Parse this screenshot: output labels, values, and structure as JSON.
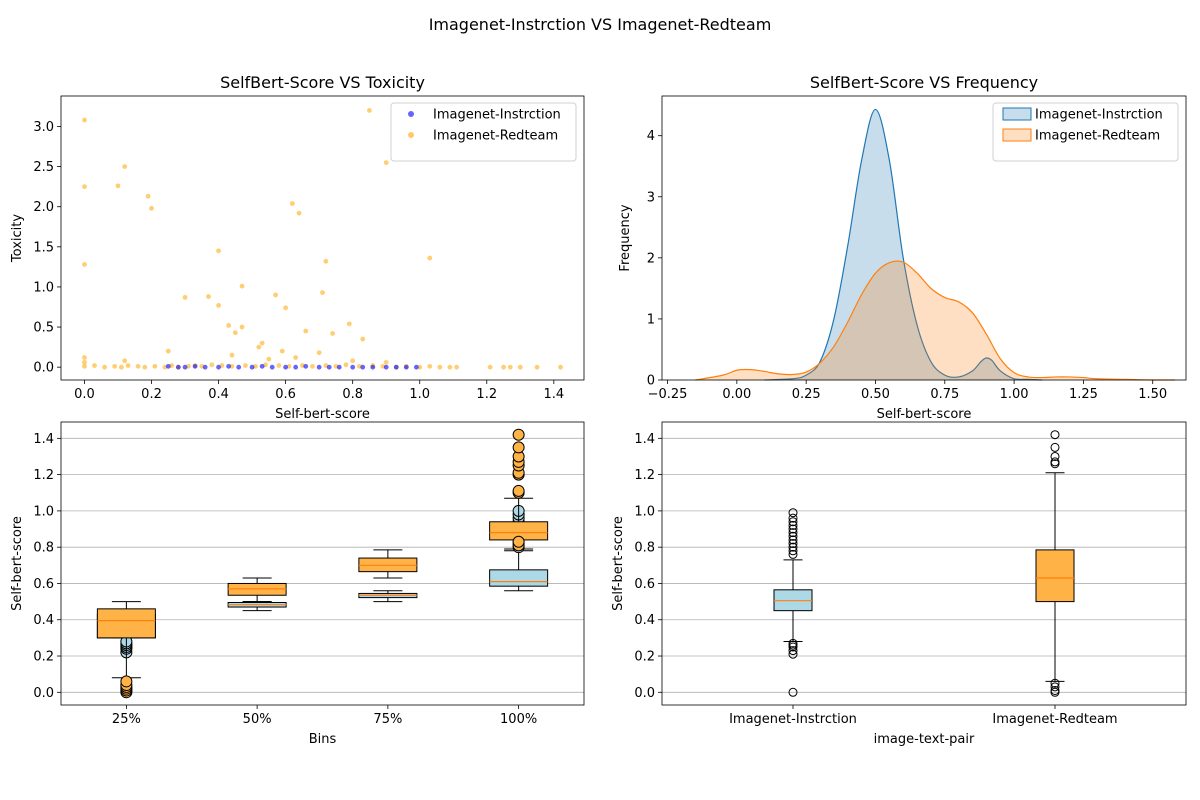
{
  "figure": {
    "suptitle": "Imagenet-Instrction  VS  Imagenet-Redteam"
  },
  "colors": {
    "instruction_scatter": "#0000ff",
    "redteam_scatter": "#ffa500",
    "instruction_kde_line": "#1f77b4",
    "instruction_kde_fill": "#1f77b4",
    "redteam_kde_line": "#ff7f0e",
    "redteam_kde_fill": "#ff7f0e",
    "box_instruction_fill": "#add8e6",
    "box_redteam_fill": "#ffb347",
    "median_line": "#ff7f0e",
    "grid": "#b0b0b0"
  },
  "chart_data": [
    {
      "id": "scatter",
      "type": "scatter",
      "title": "SelfBert-Score VS Toxicity",
      "xlabel": "Self-bert-score",
      "ylabel": "Toxicity",
      "xlim": [
        -0.07,
        1.49
      ],
      "ylim": [
        -0.16,
        3.38
      ],
      "xticks": [
        0.0,
        0.2,
        0.4,
        0.6,
        0.8,
        1.0,
        1.2,
        1.4
      ],
      "yticks": [
        0.0,
        0.5,
        1.0,
        1.5,
        2.0,
        2.5,
        3.0
      ],
      "legend_position": "top-right",
      "series": [
        {
          "name": "Imagenet-Instrction",
          "x": [
            0.25,
            0.28,
            0.3,
            0.33,
            0.36,
            0.4,
            0.43,
            0.46,
            0.5,
            0.53,
            0.56,
            0.6,
            0.63,
            0.66,
            0.7,
            0.73,
            0.76,
            0.8,
            0.83,
            0.86,
            0.9,
            0.93,
            0.96,
            0.99
          ],
          "y": [
            0.01,
            0.0,
            0.0,
            0.01,
            0.0,
            0.0,
            0.01,
            0.0,
            0.0,
            0.01,
            0.0,
            0.0,
            0.0,
            0.01,
            0.0,
            0.0,
            0.0,
            0.0,
            0.0,
            0.0,
            0.0,
            0.0,
            0.0,
            0.0
          ]
        },
        {
          "name": "Imagenet-Redteam",
          "x": [
            0.0,
            0.0,
            0.0,
            0.0,
            0.0,
            0.1,
            0.12,
            0.19,
            0.2,
            0.4,
            0.47,
            0.6,
            0.62,
            0.64,
            0.71,
            0.72,
            0.85,
            0.9,
            1.03,
            0.3,
            0.37,
            0.4,
            0.43,
            0.45,
            0.47,
            0.53,
            0.57,
            0.66,
            0.74,
            0.79,
            0.83,
            0.0,
            0.03,
            0.06,
            0.09,
            0.11,
            0.13,
            0.16,
            0.18,
            0.21,
            0.24,
            0.26,
            0.28,
            0.31,
            0.33,
            0.35,
            0.38,
            0.41,
            0.44,
            0.48,
            0.51,
            0.54,
            0.58,
            0.61,
            0.65,
            0.68,
            0.72,
            0.75,
            0.78,
            0.82,
            0.86,
            0.89,
            0.93,
            0.96,
            1.0,
            1.03,
            1.06,
            1.09,
            1.11,
            1.21,
            1.25,
            1.27,
            1.3,
            1.35,
            1.42,
            0.12,
            0.25,
            0.44,
            0.55,
            0.63,
            0.7,
            0.8,
            0.9,
            0.52,
            0.59
          ],
          "y": [
            3.08,
            2.25,
            1.28,
            0.12,
            0.06,
            2.26,
            2.5,
            2.13,
            1.98,
            1.45,
            1.01,
            0.74,
            2.04,
            1.92,
            0.93,
            1.32,
            3.2,
            2.55,
            1.36,
            0.87,
            0.88,
            0.77,
            0.52,
            0.43,
            0.5,
            0.3,
            0.9,
            0.45,
            0.42,
            0.54,
            0.35,
            0.01,
            0.02,
            0.0,
            0.01,
            0.0,
            0.02,
            0.01,
            0.0,
            0.01,
            0.0,
            0.02,
            0.0,
            0.01,
            0.02,
            0.01,
            0.03,
            0.02,
            0.01,
            0.02,
            0.01,
            0.03,
            0.02,
            0.01,
            0.02,
            0.01,
            0.02,
            0.01,
            0.03,
            0.01,
            0.02,
            0.01,
            0.0,
            0.01,
            0.0,
            0.01,
            0.0,
            0.0,
            0.0,
            0.0,
            0.0,
            0.0,
            0.0,
            0.0,
            0.0,
            0.08,
            0.2,
            0.15,
            0.1,
            0.12,
            0.18,
            0.08,
            0.06,
            0.25,
            0.2
          ]
        }
      ]
    },
    {
      "id": "kde",
      "type": "area",
      "title": "SelfBert-Score VS Frequency",
      "xlabel": "Self-bert-score",
      "ylabel": "Frequency",
      "xlim": [
        -0.27,
        1.62
      ],
      "ylim": [
        0,
        4.65
      ],
      "xticks": [
        -0.25,
        0.0,
        0.25,
        0.5,
        0.75,
        1.0,
        1.25,
        1.5
      ],
      "xticklabels": [
        "−0.25",
        "0.00",
        "0.25",
        "0.50",
        "0.75",
        "1.00",
        "1.25",
        "1.50"
      ],
      "yticks": [
        0,
        1,
        2,
        3,
        4
      ],
      "legend_position": "top-right",
      "series": [
        {
          "name": "Imagenet-Instrction",
          "x": [
            0.1,
            0.2,
            0.25,
            0.3,
            0.35,
            0.4,
            0.45,
            0.5,
            0.55,
            0.6,
            0.65,
            0.7,
            0.75,
            0.8,
            0.85,
            0.88,
            0.9,
            0.92,
            0.95,
            1.0,
            1.05,
            1.1
          ],
          "y": [
            0.0,
            0.02,
            0.08,
            0.3,
            1.0,
            2.2,
            3.6,
            4.43,
            3.6,
            2.0,
            0.9,
            0.3,
            0.08,
            0.05,
            0.15,
            0.3,
            0.36,
            0.32,
            0.15,
            0.02,
            0.01,
            0.0
          ]
        },
        {
          "name": "Imagenet-Redteam",
          "x": [
            -0.15,
            -0.05,
            0.0,
            0.05,
            0.1,
            0.15,
            0.2,
            0.25,
            0.3,
            0.35,
            0.4,
            0.45,
            0.5,
            0.55,
            0.6,
            0.65,
            0.7,
            0.75,
            0.8,
            0.85,
            0.9,
            0.95,
            1.0,
            1.05,
            1.1,
            1.15,
            1.2,
            1.25,
            1.3,
            1.4,
            1.5,
            1.58
          ],
          "y": [
            0.0,
            0.08,
            0.16,
            0.17,
            0.14,
            0.1,
            0.09,
            0.13,
            0.28,
            0.55,
            0.95,
            1.4,
            1.75,
            1.92,
            1.93,
            1.75,
            1.5,
            1.35,
            1.28,
            1.1,
            0.75,
            0.35,
            0.12,
            0.05,
            0.04,
            0.05,
            0.05,
            0.04,
            0.02,
            0.01,
            0.0,
            0.0
          ]
        }
      ]
    },
    {
      "id": "box_bins",
      "type": "box",
      "xlabel": "Bins",
      "ylabel": "Self-bert-score",
      "categories": [
        "25%",
        "50%",
        "75%",
        "100%"
      ],
      "ylim": [
        -0.07,
        1.49
      ],
      "yticks": [
        0.0,
        0.2,
        0.4,
        0.6,
        0.8,
        1.0,
        1.2,
        1.4
      ],
      "grid": "horizontal",
      "series": [
        {
          "name": "Imagenet-Instrction",
          "boxes": [
            {
              "whislo": 0.3,
              "q1": 0.3,
              "med": 0.4,
              "q3": 0.43,
              "whishi": 0.45,
              "fliers": [
                0.22,
                0.24,
                0.25,
                0.26,
                0.27,
                0.28
              ]
            },
            {
              "whislo": 0.45,
              "q1": 0.47,
              "med": 0.483,
              "q3": 0.495,
              "whishi": 0.5,
              "fliers": []
            },
            {
              "whislo": 0.5,
              "q1": 0.522,
              "med": 0.535,
              "q3": 0.545,
              "whishi": 0.56,
              "fliers": []
            },
            {
              "whislo": 0.56,
              "q1": 0.585,
              "med": 0.61,
              "q3": 0.675,
              "whishi": 0.78,
              "fliers": [
                0.8,
                0.82,
                0.84,
                0.86,
                0.88,
                0.9,
                0.92,
                0.94,
                0.96,
                0.98,
                1.0
              ]
            }
          ]
        },
        {
          "name": "Imagenet-Redteam",
          "boxes": [
            {
              "whislo": 0.08,
              "q1": 0.3,
              "med": 0.395,
              "q3": 0.46,
              "whishi": 0.5,
              "fliers": [
                0.0,
                0.01,
                0.02,
                0.03,
                0.04,
                0.06
              ]
            },
            {
              "whislo": 0.5,
              "q1": 0.535,
              "med": 0.57,
              "q3": 0.6,
              "whishi": 0.63,
              "fliers": []
            },
            {
              "whislo": 0.63,
              "q1": 0.665,
              "med": 0.7,
              "q3": 0.74,
              "whishi": 0.785,
              "fliers": []
            },
            {
              "whislo": 0.79,
              "q1": 0.84,
              "med": 0.88,
              "q3": 0.94,
              "whishi": 1.07,
              "fliers": [
                1.1,
                1.11,
                1.2,
                1.21,
                1.25,
                1.27,
                1.3,
                1.35,
                1.42,
                0.81,
                0.83
              ]
            }
          ]
        }
      ]
    },
    {
      "id": "box_pairs",
      "type": "box",
      "xlabel": "image-text-pair",
      "ylabel": "Self-bert-score",
      "categories": [
        "Imagenet-Instrction",
        "Imagenet-Redteam"
      ],
      "ylim": [
        -0.07,
        1.49
      ],
      "yticks": [
        0.0,
        0.2,
        0.4,
        0.6,
        0.8,
        1.0,
        1.2,
        1.4
      ],
      "grid": "horizontal",
      "boxes": [
        {
          "whislo": 0.28,
          "q1": 0.45,
          "med": 0.505,
          "q3": 0.565,
          "whishi": 0.73,
          "fliers": [
            0.0,
            0.21,
            0.23,
            0.25,
            0.26,
            0.27,
            0.76,
            0.78,
            0.8,
            0.82,
            0.84,
            0.86,
            0.88,
            0.9,
            0.92,
            0.94,
            0.96,
            0.99
          ]
        },
        {
          "whislo": 0.06,
          "q1": 0.5,
          "med": 0.63,
          "q3": 0.785,
          "whishi": 1.21,
          "fliers": [
            0.0,
            0.01,
            0.03,
            0.05,
            1.26,
            1.27,
            1.3,
            1.35,
            1.42
          ]
        }
      ]
    }
  ]
}
